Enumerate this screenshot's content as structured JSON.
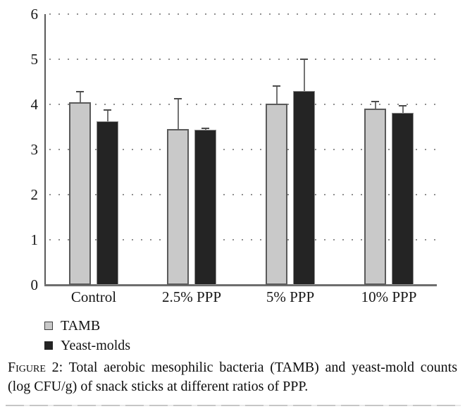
{
  "chart_data": {
    "type": "bar",
    "categories": [
      "Control",
      "2.5% PPP",
      "5% PPP",
      "10% PPP"
    ],
    "series": [
      {
        "name": "TAMB",
        "fill_color": "#c9c9c9",
        "border_color": "#5a5a5a",
        "values": [
          4.05,
          3.45,
          4.02,
          3.91
        ],
        "errors_up": [
          0.23,
          0.68,
          0.38,
          0.16
        ]
      },
      {
        "name": "Yeast-molds",
        "fill_color": "#242424",
        "border_color": "#8d8d8d",
        "values": [
          3.62,
          3.43,
          4.3,
          3.82
        ],
        "errors_up": [
          0.25,
          0.04,
          0.7,
          0.15
        ]
      }
    ],
    "title": "",
    "xlabel": "",
    "ylabel": "",
    "ylim": [
      0,
      6
    ],
    "yticks": [
      0,
      1,
      2,
      3,
      4,
      5,
      6
    ],
    "grid": "horizontal-dotted",
    "legend_position": "bottom-left",
    "error_bars": "upper-only"
  },
  "legend": {
    "items": [
      {
        "label": "TAMB"
      },
      {
        "label": "Yeast-molds"
      }
    ]
  },
  "caption": {
    "label": "Figure 2:",
    "text": "Total aerobic mesophilic bacteria (TAMB) and yeast-mold counts (log CFU/g) of snack sticks at different ratios of PPP."
  }
}
